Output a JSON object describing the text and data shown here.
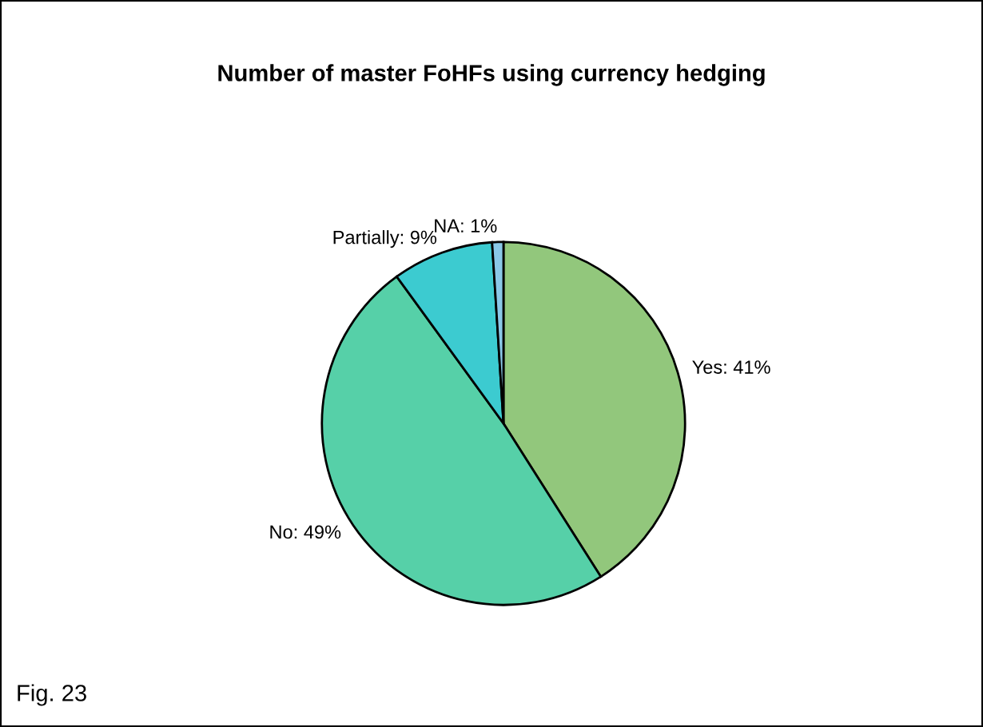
{
  "chart_data": {
    "type": "pie",
    "title": "Number of master FoHFs using currency hedging",
    "categories": [
      "Yes",
      "No",
      "Partially",
      "NA"
    ],
    "values": [
      41,
      49,
      9,
      1
    ],
    "colors": [
      "#92c77c",
      "#56d0a8",
      "#3ccbd0",
      "#8ac8e8"
    ],
    "value_labels": [
      "41%",
      "49%",
      "9%",
      "1%"
    ],
    "annotations": [
      "Fig. 23"
    ]
  }
}
